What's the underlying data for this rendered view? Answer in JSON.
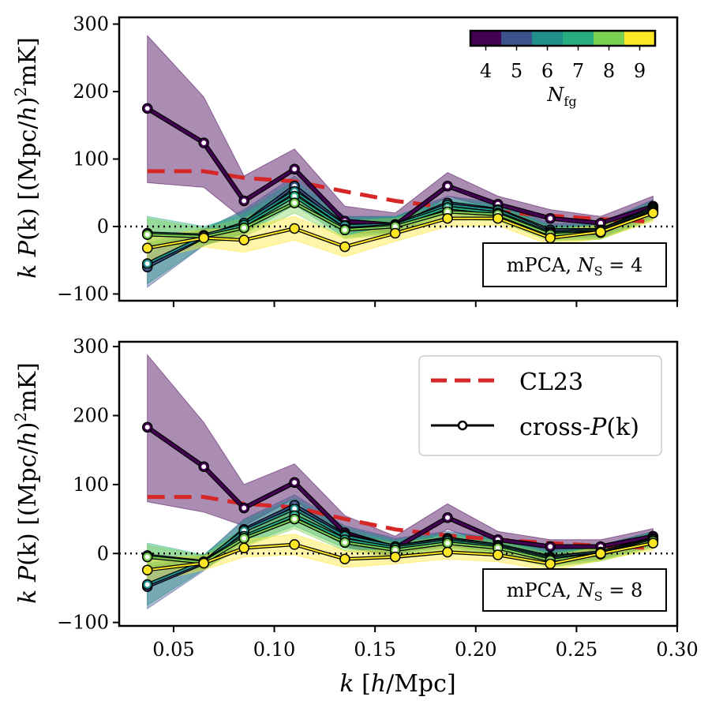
{
  "chart_data": [
    {
      "type": "line",
      "panel": "top",
      "annotation": "mPCA, N_S = 4",
      "annotation_text": "mPCA, ",
      "annotation_sym": "N",
      "annotation_sub": "S",
      "annotation_eq": " = 4",
      "ylabel": "k P(k) [(Mpc/h)²mK]",
      "xlim": [
        0.023,
        0.3
      ],
      "ylim": [
        -110,
        310
      ],
      "yticks": [
        -100,
        0,
        100,
        200,
        300
      ],
      "ytick_labels": [
        "−100",
        "0",
        "100",
        "200",
        "300"
      ],
      "zero_line": 0,
      "x": [
        0.037,
        0.065,
        0.085,
        0.11,
        0.135,
        0.16,
        0.186,
        0.211,
        0.237,
        0.262,
        0.288
      ],
      "cl23": {
        "name": "CL23",
        "values": [
          82,
          82,
          72,
          67,
          52,
          38,
          28,
          22,
          16,
          11,
          7
        ]
      },
      "series": [
        {
          "name": "N_fg = 4",
          "nfg": 4,
          "color": "#440154",
          "values": [
            175,
            124,
            38,
            85,
            8,
            2,
            60,
            33,
            12,
            5,
            30
          ],
          "lower": [
            65,
            58,
            10,
            60,
            -5,
            -8,
            45,
            25,
            0,
            -2,
            15
          ],
          "upper": [
            283,
            192,
            75,
            115,
            30,
            20,
            80,
            45,
            25,
            15,
            45
          ]
        },
        {
          "name": "N_fg = 5",
          "nfg": 5,
          "color": "#3b528b",
          "values": [
            -60,
            -16,
            5,
            60,
            2,
            2,
            35,
            25,
            -5,
            -5,
            28
          ],
          "lower": [
            -90,
            -28,
            -10,
            45,
            -10,
            -8,
            25,
            15,
            -15,
            -15,
            15
          ],
          "upper": [
            -30,
            -5,
            25,
            75,
            15,
            15,
            45,
            35,
            5,
            5,
            40
          ]
        },
        {
          "name": "N_fg = 6",
          "nfg": 6,
          "color": "#21908d",
          "values": [
            -55,
            -15,
            5,
            52,
            1,
            3,
            32,
            24,
            -8,
            -6,
            26
          ],
          "lower": [
            -85,
            -28,
            -10,
            38,
            -12,
            -10,
            22,
            14,
            -18,
            -16,
            12
          ],
          "upper": [
            -25,
            -3,
            22,
            68,
            14,
            15,
            42,
            33,
            2,
            4,
            38
          ]
        },
        {
          "name": "N_fg = 7",
          "nfg": 7,
          "color": "#27ad81",
          "values": [
            -10,
            -13,
            2,
            45,
            -4,
            2,
            28,
            20,
            -10,
            -8,
            24
          ],
          "lower": [
            -30,
            -25,
            -12,
            32,
            -16,
            -10,
            18,
            10,
            -20,
            -18,
            12
          ],
          "upper": [
            15,
            0,
            18,
            58,
            10,
            14,
            38,
            30,
            0,
            2,
            35
          ]
        },
        {
          "name": "N_fg = 8",
          "nfg": 8,
          "color": "#7ad151",
          "values": [
            -12,
            -15,
            -2,
            35,
            -5,
            0,
            22,
            18,
            -12,
            -9,
            22
          ],
          "lower": [
            -32,
            -27,
            -15,
            20,
            -18,
            -12,
            12,
            8,
            -22,
            -19,
            10
          ],
          "upper": [
            12,
            -3,
            12,
            50,
            8,
            12,
            32,
            28,
            -2,
            1,
            32
          ]
        },
        {
          "name": "N_fg = 9",
          "nfg": 9,
          "color": "#fde725",
          "values": [
            -32,
            -17,
            -20,
            -3,
            -30,
            -10,
            12,
            12,
            -17,
            -8,
            20
          ],
          "lower": [
            -50,
            -30,
            -38,
            -20,
            -45,
            -22,
            0,
            2,
            -28,
            -18,
            8
          ],
          "upper": [
            -15,
            -5,
            -2,
            15,
            -15,
            2,
            24,
            22,
            -6,
            2,
            32
          ]
        }
      ]
    },
    {
      "type": "line",
      "panel": "bottom",
      "annotation": "mPCA, N_S = 8",
      "annotation_text": "mPCA, ",
      "annotation_sym": "N",
      "annotation_sub": "S",
      "annotation_eq": " = 8",
      "ylabel": "k P(k) [(Mpc/h)²mK]",
      "xlabel": "k [h/Mpc]",
      "xlim": [
        0.023,
        0.3
      ],
      "ylim": [
        -105,
        307
      ],
      "xticks": [
        0.05,
        0.1,
        0.15,
        0.2,
        0.25,
        0.3
      ],
      "xtick_labels": [
        "0.05",
        "0.10",
        "0.15",
        "0.20",
        "0.25",
        "0.30"
      ],
      "yticks": [
        -100,
        0,
        100,
        200,
        300
      ],
      "ytick_labels": [
        "−100",
        "0",
        "100",
        "200",
        "300"
      ],
      "zero_line": 0,
      "x": [
        0.037,
        0.065,
        0.085,
        0.11,
        0.135,
        0.16,
        0.186,
        0.211,
        0.237,
        0.262,
        0.288
      ],
      "cl23": {
        "name": "CL23",
        "values": [
          82,
          82,
          72,
          67,
          50,
          35,
          26,
          20,
          15,
          11,
          8
        ]
      },
      "series": [
        {
          "name": "N_fg = 4",
          "nfg": 4,
          "color": "#440154",
          "values": [
            183,
            126,
            66,
            103,
            30,
            8,
            52,
            20,
            10,
            10,
            25
          ],
          "lower": [
            75,
            60,
            40,
            80,
            10,
            -5,
            35,
            10,
            0,
            0,
            15
          ],
          "upper": [
            288,
            190,
            100,
            130,
            55,
            25,
            72,
            32,
            20,
            20,
            36
          ]
        },
        {
          "name": "N_fg = 5",
          "nfg": 5,
          "color": "#3b528b",
          "values": [
            -48,
            -14,
            35,
            70,
            27,
            10,
            22,
            12,
            -5,
            2,
            22
          ],
          "lower": [
            -80,
            -25,
            20,
            55,
            15,
            0,
            12,
            2,
            -15,
            -8,
            12
          ],
          "upper": [
            -20,
            -3,
            50,
            85,
            40,
            22,
            32,
            22,
            5,
            12,
            32
          ]
        },
        {
          "name": "N_fg = 6",
          "nfg": 6,
          "color": "#21908d",
          "values": [
            -45,
            -12,
            33,
            65,
            25,
            10,
            20,
            12,
            -6,
            2,
            21
          ],
          "lower": [
            -75,
            -23,
            18,
            50,
            12,
            0,
            10,
            2,
            -16,
            -8,
            11
          ],
          "upper": [
            -15,
            -2,
            48,
            80,
            38,
            20,
            30,
            22,
            4,
            12,
            31
          ]
        },
        {
          "name": "N_fg = 7",
          "nfg": 7,
          "color": "#27ad81",
          "values": [
            -3,
            -12,
            25,
            55,
            20,
            8,
            18,
            10,
            -8,
            0,
            20
          ],
          "lower": [
            -20,
            -22,
            12,
            40,
            8,
            -2,
            8,
            0,
            -18,
            -10,
            10
          ],
          "upper": [
            15,
            -2,
            38,
            70,
            32,
            18,
            28,
            20,
            2,
            10,
            30
          ]
        },
        {
          "name": "N_fg = 8",
          "nfg": 8,
          "color": "#7ad151",
          "values": [
            -5,
            -13,
            22,
            50,
            16,
            5,
            15,
            8,
            -10,
            -1,
            18
          ],
          "lower": [
            -22,
            -23,
            10,
            36,
            4,
            -5,
            5,
            -2,
            -20,
            -11,
            8
          ],
          "upper": [
            12,
            -3,
            35,
            64,
            28,
            15,
            25,
            18,
            0,
            9,
            28
          ]
        },
        {
          "name": "N_fg = 9",
          "nfg": 9,
          "color": "#fde725",
          "values": [
            -24,
            -14,
            8,
            13,
            -8,
            -5,
            2,
            -2,
            -15,
            0,
            15
          ],
          "lower": [
            -42,
            -24,
            -5,
            -2,
            -20,
            -15,
            -8,
            -12,
            -25,
            -10,
            5
          ],
          "upper": [
            -6,
            -4,
            20,
            28,
            4,
            5,
            12,
            8,
            -5,
            10,
            25
          ]
        }
      ]
    }
  ],
  "legend": {
    "cl23_label": "CL23",
    "cross_label_prefix": "cross-",
    "cross_label_sym": "P",
    "cross_label_arg": "(k)"
  },
  "colorbar": {
    "label_sym": "N",
    "label_sub": "fg",
    "ticks": [
      "4",
      "5",
      "6",
      "7",
      "8",
      "9"
    ],
    "colors": [
      "#440154",
      "#3b528b",
      "#21908d",
      "#27ad81",
      "#7ad151",
      "#fde725"
    ]
  },
  "ylabel_parts": {
    "k": "k",
    "P": "P",
    "arg": "(k)",
    "unit": "[(Mpc/",
    "h": "h",
    "unit2": ")",
    "sup": "2",
    "unit3": "mK]"
  },
  "xlabel_parts": {
    "k": "k",
    "unit": "[",
    "h": "h",
    "unit2": "/Mpc]"
  },
  "colors": {
    "cl23": "#d62728",
    "zero_line": "#000000"
  }
}
